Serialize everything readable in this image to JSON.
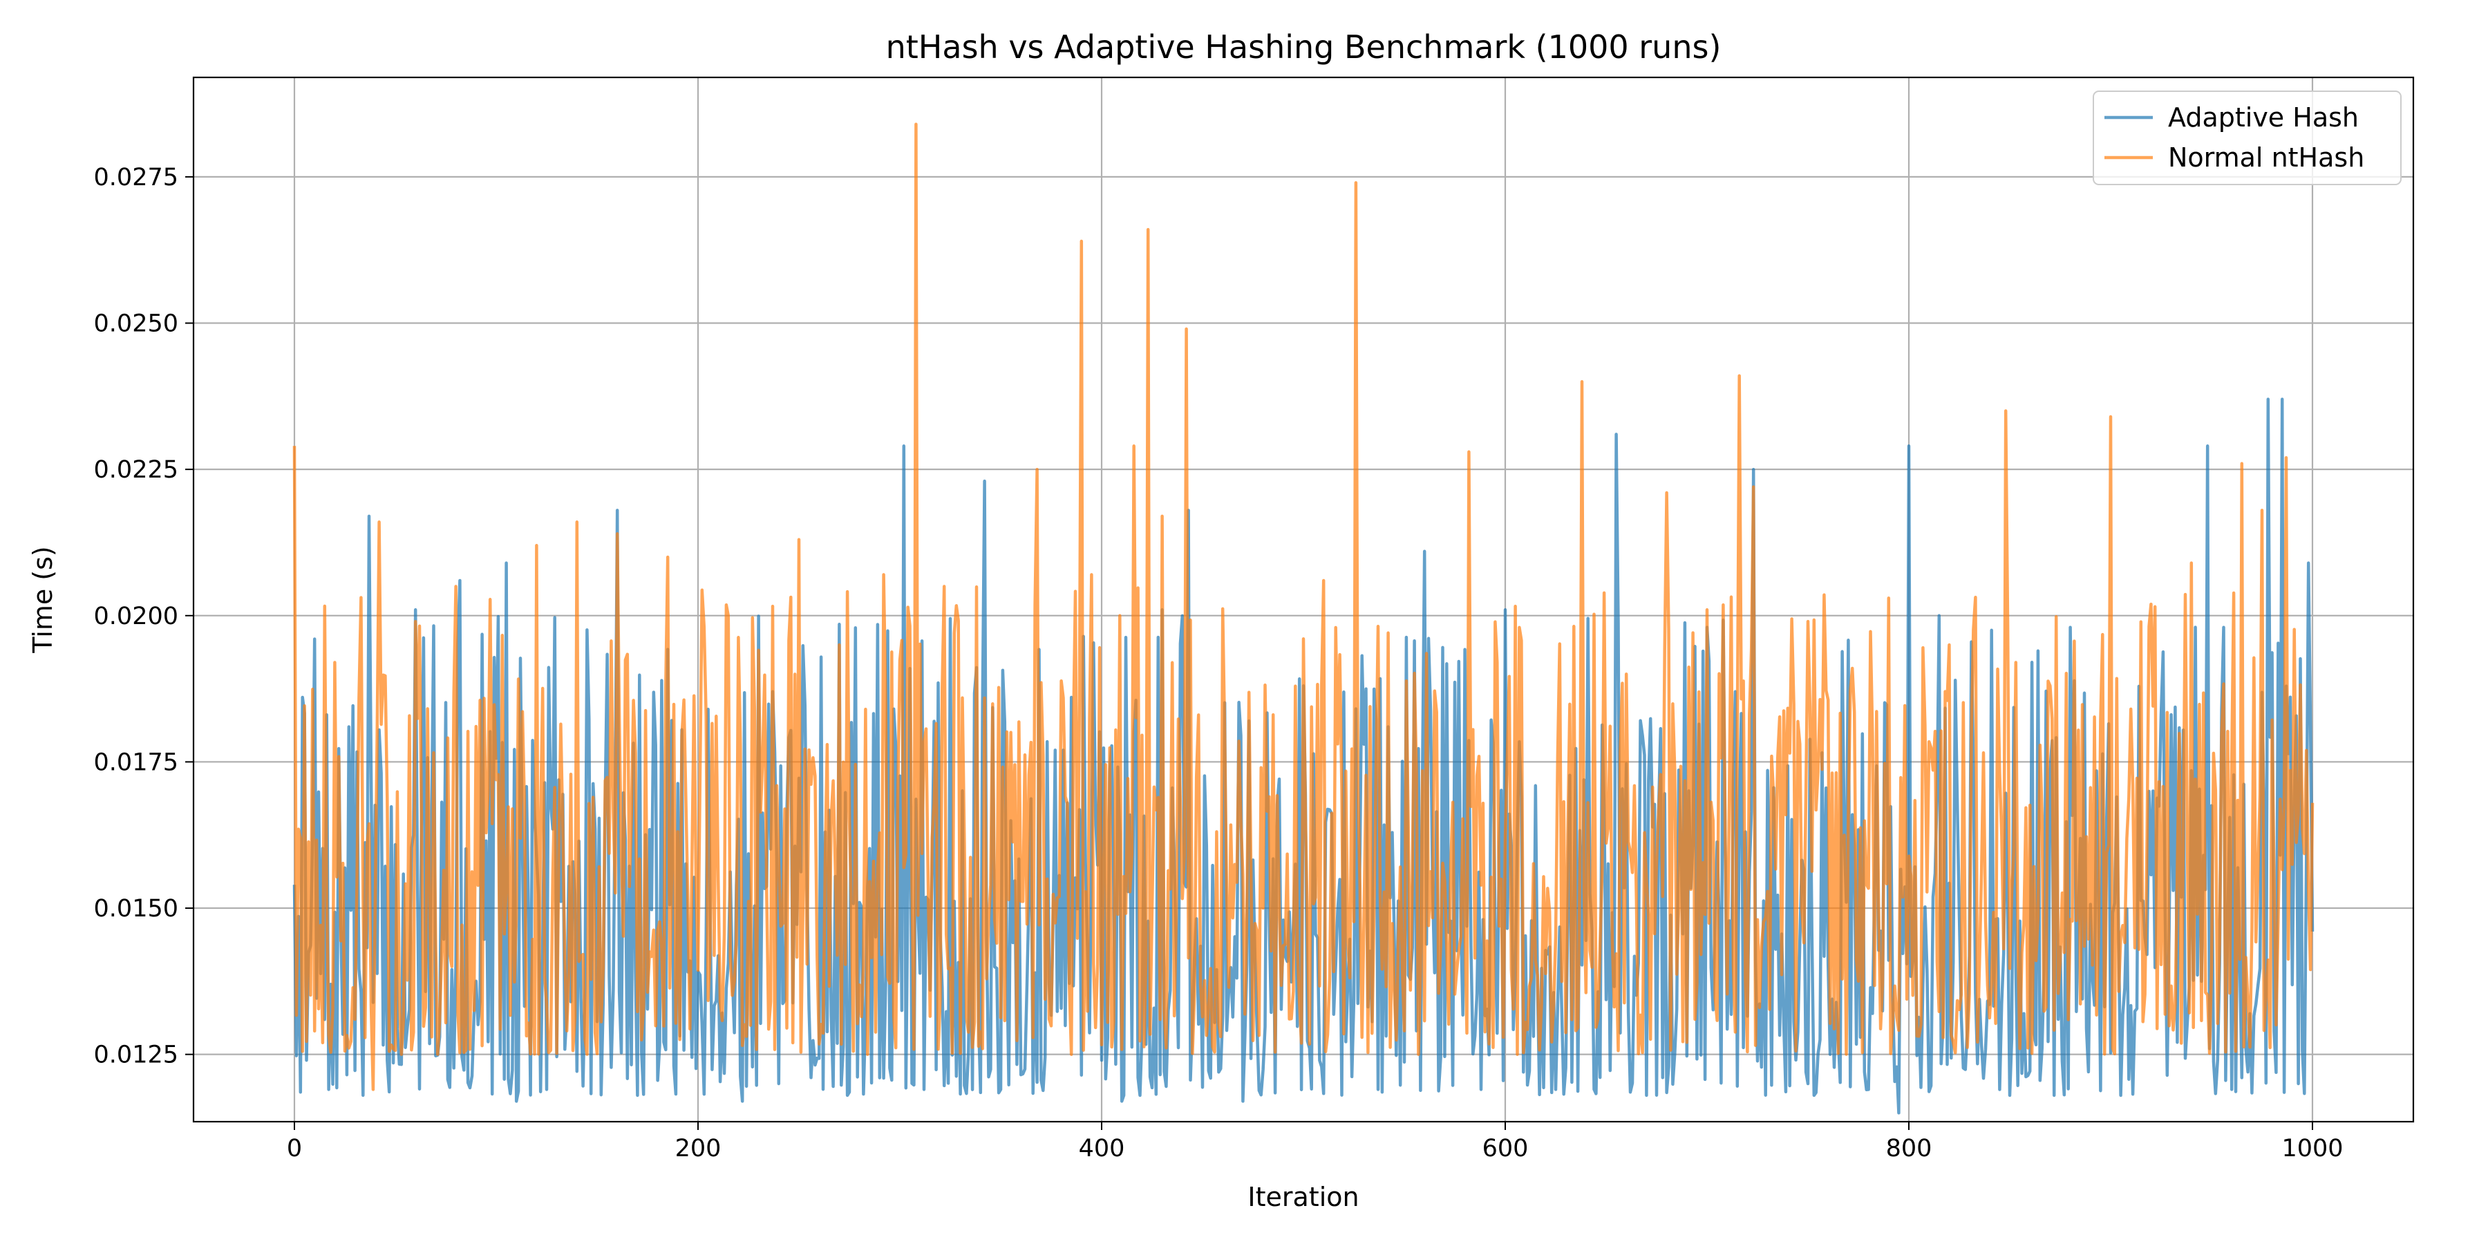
{
  "chart_data": {
    "type": "line",
    "title": "ntHash vs Adaptive Hashing Benchmark (1000 runs)",
    "xlabel": "Iteration",
    "ylabel": "Time (s)",
    "xlim": [
      -50,
      1050
    ],
    "ylim": [
      0.01135,
      0.0292
    ],
    "xticks": [
      0,
      200,
      400,
      600,
      800,
      1000
    ],
    "xtick_labels": [
      "0",
      "200",
      "400",
      "600",
      "800",
      "1000"
    ],
    "yticks": [
      0.0125,
      0.015,
      0.0175,
      0.02,
      0.0225,
      0.025,
      0.0275
    ],
    "ytick_labels": [
      "0.0125",
      "0.0150",
      "0.0175",
      "0.0200",
      "0.0225",
      "0.0250",
      "0.0275"
    ],
    "grid": true,
    "legend_position": "top-right",
    "series": [
      {
        "name": "Adaptive Hash",
        "color": "#1f77b4",
        "alpha": 0.7,
        "sample_points": [
          [
            0,
            0.0154
          ],
          [
            6,
            0.0124
          ],
          [
            10,
            0.0196
          ],
          [
            17,
            0.0119
          ],
          [
            27,
            0.0181
          ],
          [
            37,
            0.0217
          ],
          [
            46,
            0.0124
          ],
          [
            60,
            0.0201
          ],
          [
            72,
            0.0128
          ],
          [
            82,
            0.0206
          ],
          [
            92,
            0.0134
          ],
          [
            105,
            0.0209
          ],
          [
            110,
            0.0117
          ],
          [
            125,
            0.0119
          ],
          [
            160,
            0.0218
          ],
          [
            170,
            0.0118
          ],
          [
            205,
            0.0184
          ],
          [
            222,
            0.0117
          ],
          [
            240,
            0.012
          ],
          [
            290,
            0.0121
          ],
          [
            302,
            0.0229
          ],
          [
            312,
            0.0119
          ],
          [
            342,
            0.0223
          ],
          [
            350,
            0.0119
          ],
          [
            400,
            0.0124
          ],
          [
            410,
            0.0117
          ],
          [
            430,
            0.0201
          ],
          [
            443,
            0.0218
          ],
          [
            470,
            0.0117
          ],
          [
            500,
            0.0188
          ],
          [
            537,
            0.0119
          ],
          [
            560,
            0.0211
          ],
          [
            588,
            0.0119
          ],
          [
            600,
            0.0201
          ],
          [
            625,
            0.0119
          ],
          [
            655,
            0.0231
          ],
          [
            670,
            0.0118
          ],
          [
            700,
            0.0198
          ],
          [
            723,
            0.0225
          ],
          [
            750,
            0.012
          ],
          [
            780,
            0.0119
          ],
          [
            795,
            0.0115
          ],
          [
            800,
            0.0229
          ],
          [
            815,
            0.02
          ],
          [
            850,
            0.0118
          ],
          [
            880,
            0.0198
          ],
          [
            905,
            0.0118
          ],
          [
            925,
            0.0183
          ],
          [
            948,
            0.0229
          ],
          [
            960,
            0.0119
          ],
          [
            978,
            0.0237
          ],
          [
            985,
            0.0237
          ],
          [
            993,
            0.012
          ],
          [
            998,
            0.0209
          ],
          [
            1000,
            0.0146
          ]
        ]
      },
      {
        "name": "Normal ntHash",
        "color": "#ff7f0e",
        "alpha": 0.7,
        "sample_points": [
          [
            0,
            0.0229
          ],
          [
            3,
            0.0162
          ],
          [
            10,
            0.0129
          ],
          [
            20,
            0.0192
          ],
          [
            30,
            0.0131
          ],
          [
            39,
            0.0119
          ],
          [
            42,
            0.0216
          ],
          [
            60,
            0.0199
          ],
          [
            80,
            0.0205
          ],
          [
            120,
            0.0212
          ],
          [
            140,
            0.0216
          ],
          [
            160,
            0.0214
          ],
          [
            185,
            0.021
          ],
          [
            215,
            0.02
          ],
          [
            250,
            0.0213
          ],
          [
            270,
            0.0195
          ],
          [
            292,
            0.0207
          ],
          [
            308,
            0.0284
          ],
          [
            322,
            0.0205
          ],
          [
            345,
            0.0154
          ],
          [
            368,
            0.0225
          ],
          [
            390,
            0.0264
          ],
          [
            395,
            0.0207
          ],
          [
            416,
            0.0229
          ],
          [
            423,
            0.0266
          ],
          [
            430,
            0.0217
          ],
          [
            442,
            0.0249
          ],
          [
            480,
            0.015
          ],
          [
            510,
            0.0206
          ],
          [
            526,
            0.0274
          ],
          [
            545,
            0.0136
          ],
          [
            582,
            0.0228
          ],
          [
            600,
            0.0162
          ],
          [
            638,
            0.024
          ],
          [
            660,
            0.019
          ],
          [
            680,
            0.0221
          ],
          [
            700,
            0.0201
          ],
          [
            716,
            0.0241
          ],
          [
            723,
            0.0222
          ],
          [
            750,
            0.0199
          ],
          [
            790,
            0.0203
          ],
          [
            820,
            0.0195
          ],
          [
            848,
            0.0235
          ],
          [
            870,
            0.0188
          ],
          [
            900,
            0.0234
          ],
          [
            940,
            0.0209
          ],
          [
            965,
            0.0226
          ],
          [
            975,
            0.0218
          ],
          [
            987,
            0.0227
          ],
          [
            993,
            0.0166
          ],
          [
            1000,
            0.0168
          ]
        ]
      }
    ]
  }
}
